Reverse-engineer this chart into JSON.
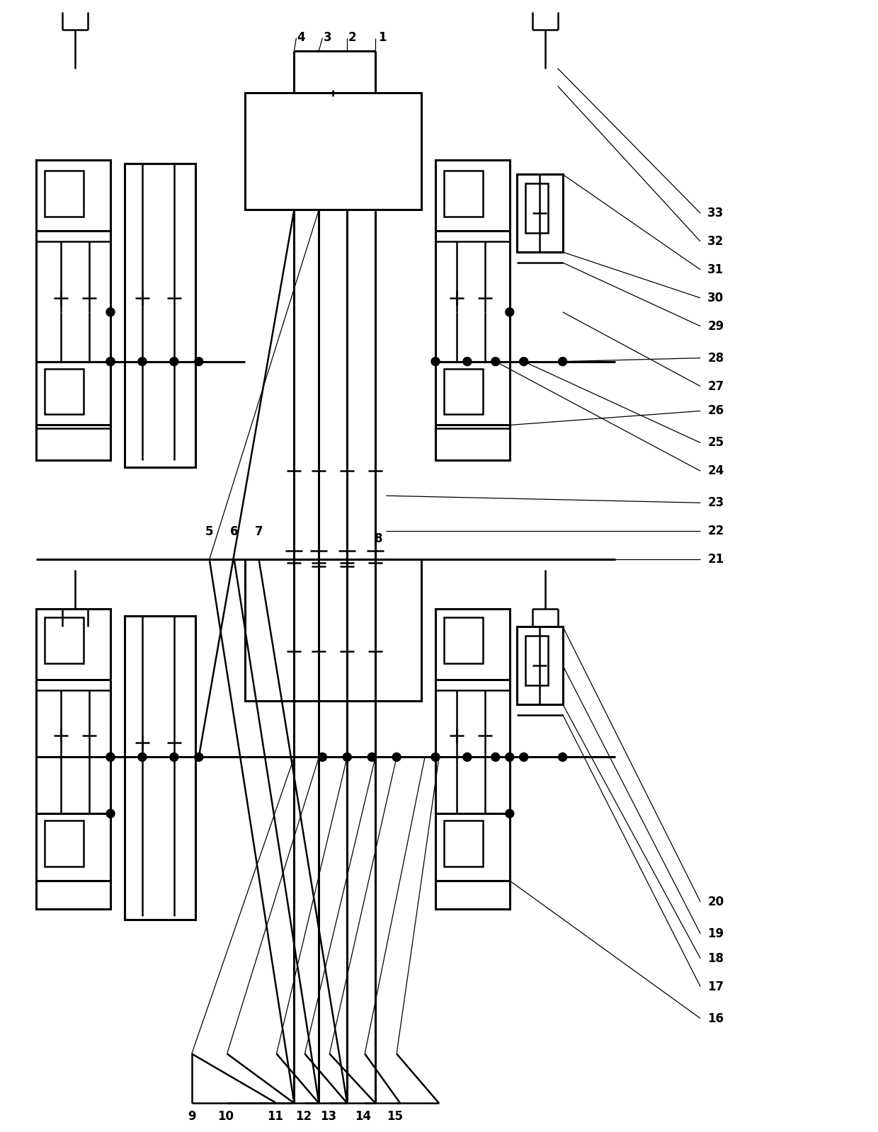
{
  "fig_width": 12.4,
  "fig_height": 15.99,
  "dpi": 100,
  "lw": 1.8,
  "lw_thin": 0.9,
  "lw_thick": 2.2,
  "bg_color": "white",
  "label_fontsize": 12
}
